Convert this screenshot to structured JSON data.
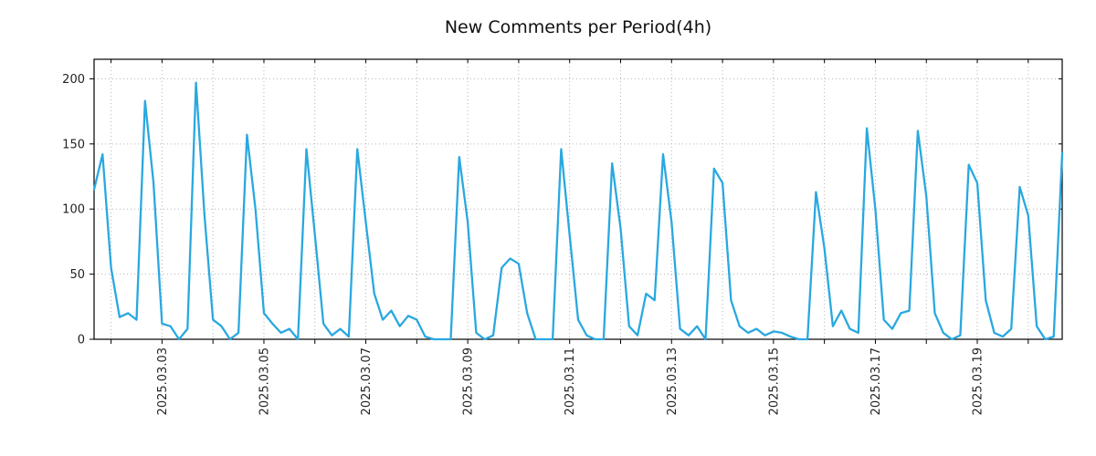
{
  "chart_data": {
    "type": "line",
    "title": "New Comments per Period(4h)",
    "period": "4h",
    "series": [
      {
        "name": "New Comments",
        "values": [
          115,
          142,
          55,
          17,
          20,
          15,
          183,
          120,
          12,
          10,
          0,
          8,
          197,
          95,
          15,
          10,
          0,
          5,
          157,
          100,
          20,
          12,
          5,
          8,
          0,
          146,
          80,
          12,
          3,
          8,
          2,
          146,
          90,
          35,
          15,
          22,
          10,
          18,
          15,
          2,
          0,
          0,
          0,
          140,
          90,
          5,
          0,
          3,
          55,
          62,
          58,
          20,
          0,
          0,
          0,
          146,
          80,
          15,
          3,
          0,
          0,
          135,
          85,
          10,
          3,
          35,
          30,
          142,
          90,
          8,
          3,
          10,
          0,
          131,
          120,
          30,
          10,
          5,
          8,
          3,
          6,
          5,
          2,
          0,
          0,
          113,
          70,
          10,
          22,
          8,
          5,
          162,
          100,
          15,
          8,
          20,
          22,
          160,
          110,
          20,
          5,
          0,
          3,
          134,
          120,
          30,
          5,
          2,
          8,
          117,
          95,
          10,
          0,
          2,
          143
        ]
      }
    ],
    "y_ticks": [
      0,
      50,
      100,
      150,
      200
    ],
    "y_max": 215,
    "x_tick_labels": [
      "2025.03.03",
      "2025.03.05",
      "2025.03.07",
      "2025.03.09",
      "2025.03.11",
      "2025.03.13",
      "2025.03.15",
      "2025.03.17",
      "2025.03.19"
    ],
    "first_midnight_index": 2,
    "points_per_day": 6,
    "x_label_every_days": 2,
    "line_color": "#29A8E0",
    "grid_color": "#b3b3b3",
    "grid_style": "dotted",
    "legend": "none"
  }
}
